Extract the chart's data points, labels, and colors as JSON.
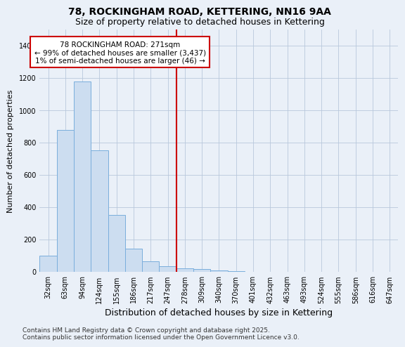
{
  "title": "78, ROCKINGHAM ROAD, KETTERING, NN16 9AA",
  "subtitle": "Size of property relative to detached houses in Kettering",
  "xlabel": "Distribution of detached houses by size in Kettering",
  "ylabel": "Number of detached properties",
  "categories": [
    "32sqm",
    "63sqm",
    "94sqm",
    "124sqm",
    "155sqm",
    "186sqm",
    "217sqm",
    "247sqm",
    "278sqm",
    "309sqm",
    "340sqm",
    "370sqm",
    "401sqm",
    "432sqm",
    "463sqm",
    "493sqm",
    "524sqm",
    "555sqm",
    "586sqm",
    "616sqm",
    "647sqm"
  ],
  "values": [
    100,
    875,
    1175,
    750,
    350,
    140,
    62,
    32,
    20,
    15,
    8,
    3,
    0,
    0,
    0,
    0,
    0,
    0,
    0,
    0,
    0
  ],
  "bar_color": "#ccddf0",
  "bar_edge_color": "#7aaedc",
  "vline_color": "#cc0000",
  "annotation_line1": "78 ROCKINGHAM ROAD: 271sqm",
  "annotation_line2": "← 99% of detached houses are smaller (3,437)",
  "annotation_line3": "1% of semi-detached houses are larger (46) →",
  "annotation_box_color": "#ffffff",
  "annotation_box_edge": "#cc0000",
  "ylim": [
    0,
    1500
  ],
  "yticks": [
    0,
    200,
    400,
    600,
    800,
    1000,
    1200,
    1400
  ],
  "bg_color": "#eaf0f8",
  "footer1": "Contains HM Land Registry data © Crown copyright and database right 2025.",
  "footer2": "Contains public sector information licensed under the Open Government Licence v3.0.",
  "title_fontsize": 10,
  "subtitle_fontsize": 9,
  "xlabel_fontsize": 9,
  "ylabel_fontsize": 8,
  "tick_fontsize": 7,
  "annotation_fontsize": 7.5,
  "footer_fontsize": 6.5
}
